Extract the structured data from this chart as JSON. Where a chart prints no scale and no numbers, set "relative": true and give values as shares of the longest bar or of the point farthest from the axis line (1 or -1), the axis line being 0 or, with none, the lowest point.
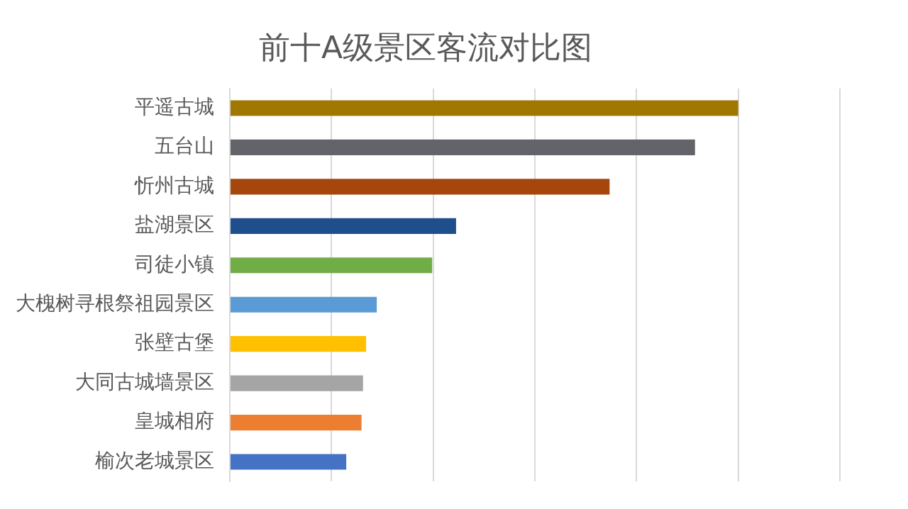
{
  "chart_data": {
    "type": "bar",
    "orientation": "horizontal",
    "relative": true,
    "title": "前十A级景区客流对比图",
    "categories": [
      "平遥古城",
      "五台山",
      "忻州古城",
      "盐湖景区",
      "司徒小镇",
      "大槐树寻根祭祖园景区",
      "张壁古堡",
      "大同古城墙景区",
      "皇城相府",
      "榆次老城景区"
    ],
    "values": [
      1,
      0.915,
      0.747,
      0.445,
      0.398,
      0.289,
      0.268,
      0.262,
      0.259,
      0.229
    ],
    "colors": [
      "#a07800",
      "#636469",
      "#a5470d",
      "#1f4e8c",
      "#70ad47",
      "#5b9bd5",
      "#ffc000",
      "#a5a5a5",
      "#ed7d31",
      "#4472c4"
    ],
    "grid": "x"
  }
}
